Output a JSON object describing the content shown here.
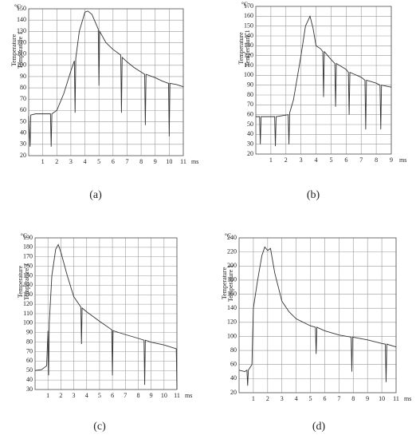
{
  "chart_data": [
    {
      "type": "line",
      "panel": "(a)",
      "y_unit": "°C",
      "x_unit": "ms",
      "y_label": "Temperature",
      "y_label_2": "Temperature 1",
      "color": "#333333",
      "grid": true,
      "xlim": [
        0,
        11
      ],
      "xticks": [
        1,
        2,
        3,
        4,
        5,
        6,
        7,
        8,
        9,
        10,
        11
      ],
      "ylim": [
        20,
        150
      ],
      "yticks": [
        20,
        30,
        40,
        50,
        60,
        70,
        80,
        90,
        100,
        110,
        120,
        130,
        140,
        150
      ],
      "x": [
        0,
        0.1,
        0.15,
        0.5,
        1,
        1.55,
        1.6,
        1.65,
        2,
        2.5,
        3,
        3.25,
        3.3,
        3.35,
        3.6,
        4,
        4.2,
        4.5,
        4.95,
        5,
        5.05,
        5.5,
        6,
        6.55,
        6.6,
        6.65,
        7,
        7.5,
        8,
        8.25,
        8.3,
        8.35,
        9,
        9.5,
        9.95,
        10,
        10.05,
        10.5,
        11
      ],
      "values": [
        55,
        28,
        56,
        57,
        57,
        57,
        28,
        57,
        60,
        75,
        95,
        104,
        58,
        106,
        130,
        147,
        148,
        145,
        132,
        82,
        130,
        120,
        114,
        109,
        58,
        107,
        103,
        98,
        94,
        92,
        47,
        92,
        89,
        86,
        84,
        37,
        84,
        83,
        81
      ]
    },
    {
      "type": "line",
      "panel": "(b)",
      "y_unit": "°C",
      "x_unit": "ms",
      "y_label": "Temperature",
      "y_label_2": "Temperature 1",
      "color": "#333333",
      "grid": true,
      "xlim": [
        0,
        9
      ],
      "xticks": [
        1,
        2,
        3,
        4,
        5,
        6,
        7,
        8,
        9
      ],
      "ylim": [
        20,
        170
      ],
      "yticks": [
        20,
        30,
        40,
        50,
        60,
        70,
        80,
        90,
        100,
        110,
        120,
        130,
        140,
        150,
        160,
        170
      ],
      "x": [
        0,
        0.25,
        0.3,
        0.35,
        1.25,
        1.3,
        1.35,
        2.15,
        2.2,
        2.25,
        2.5,
        3,
        3.3,
        3.6,
        3.8,
        4,
        4.3,
        4.45,
        4.5,
        4.55,
        5,
        5.25,
        5.3,
        5.35,
        6,
        6.15,
        6.2,
        6.25,
        7,
        7.25,
        7.3,
        7.35,
        8,
        8.25,
        8.3,
        8.35,
        9
      ],
      "values": [
        58,
        58,
        30,
        58,
        58,
        28,
        58,
        60,
        30,
        62,
        75,
        120,
        150,
        160,
        148,
        130,
        127,
        124,
        78,
        124,
        116,
        112,
        68,
        112,
        106,
        103,
        60,
        103,
        98,
        95,
        45,
        95,
        92,
        90,
        45,
        90,
        88
      ]
    },
    {
      "type": "line",
      "panel": "(c)",
      "y_unit": "°C",
      "x_unit": "ms",
      "y_label": "Temperature",
      "y_label_2": "Temperature 1",
      "color": "#333333",
      "grid": true,
      "xlim": [
        0,
        11
      ],
      "xticks": [
        1,
        2,
        3,
        4,
        5,
        6,
        7,
        8,
        9,
        10,
        11
      ],
      "ylim": [
        30,
        190
      ],
      "yticks": [
        30,
        40,
        50,
        60,
        70,
        80,
        90,
        100,
        110,
        120,
        130,
        140,
        150,
        160,
        170,
        180,
        190
      ],
      "x": [
        0,
        0.5,
        0.9,
        1,
        1.05,
        1.1,
        1.3,
        1.6,
        1.8,
        2,
        2.5,
        3,
        3.55,
        3.6,
        3.65,
        4,
        5,
        5.95,
        6,
        6.05,
        7,
        8,
        8.45,
        8.5,
        8.55,
        9,
        10,
        10.95,
        11
      ],
      "values": [
        50,
        51,
        55,
        92,
        45,
        100,
        150,
        178,
        183,
        175,
        150,
        128,
        117,
        78,
        116,
        112,
        102,
        93,
        45,
        92,
        88,
        84,
        82,
        35,
        82,
        80,
        77,
        73,
        30
      ]
    },
    {
      "type": "line",
      "panel": "(d)",
      "y_unit": "°C",
      "x_unit": "ms",
      "y_label": "Temperature",
      "y_label_2": "Temperature 1",
      "color": "#333333",
      "grid": true,
      "xlim": [
        0,
        11
      ],
      "xticks": [
        1,
        2,
        3,
        4,
        5,
        6,
        7,
        8,
        9,
        10,
        11
      ],
      "ylim": [
        20,
        240
      ],
      "yticks": [
        20,
        40,
        60,
        80,
        100,
        120,
        140,
        160,
        180,
        200,
        220,
        240
      ],
      "x": [
        0,
        0.4,
        0.55,
        0.6,
        0.65,
        0.9,
        1,
        1.3,
        1.6,
        1.8,
        2,
        2.2,
        2.5,
        3,
        3.5,
        4,
        5,
        5.35,
        5.4,
        5.45,
        6,
        7,
        7.85,
        7.9,
        7.95,
        9,
        10,
        10.25,
        10.3,
        10.35,
        11
      ],
      "values": [
        52,
        50,
        52,
        30,
        52,
        60,
        140,
        180,
        215,
        227,
        222,
        225,
        190,
        150,
        135,
        125,
        115,
        113,
        75,
        113,
        108,
        102,
        99,
        50,
        99,
        95,
        90,
        89,
        35,
        89,
        85
      ]
    }
  ]
}
